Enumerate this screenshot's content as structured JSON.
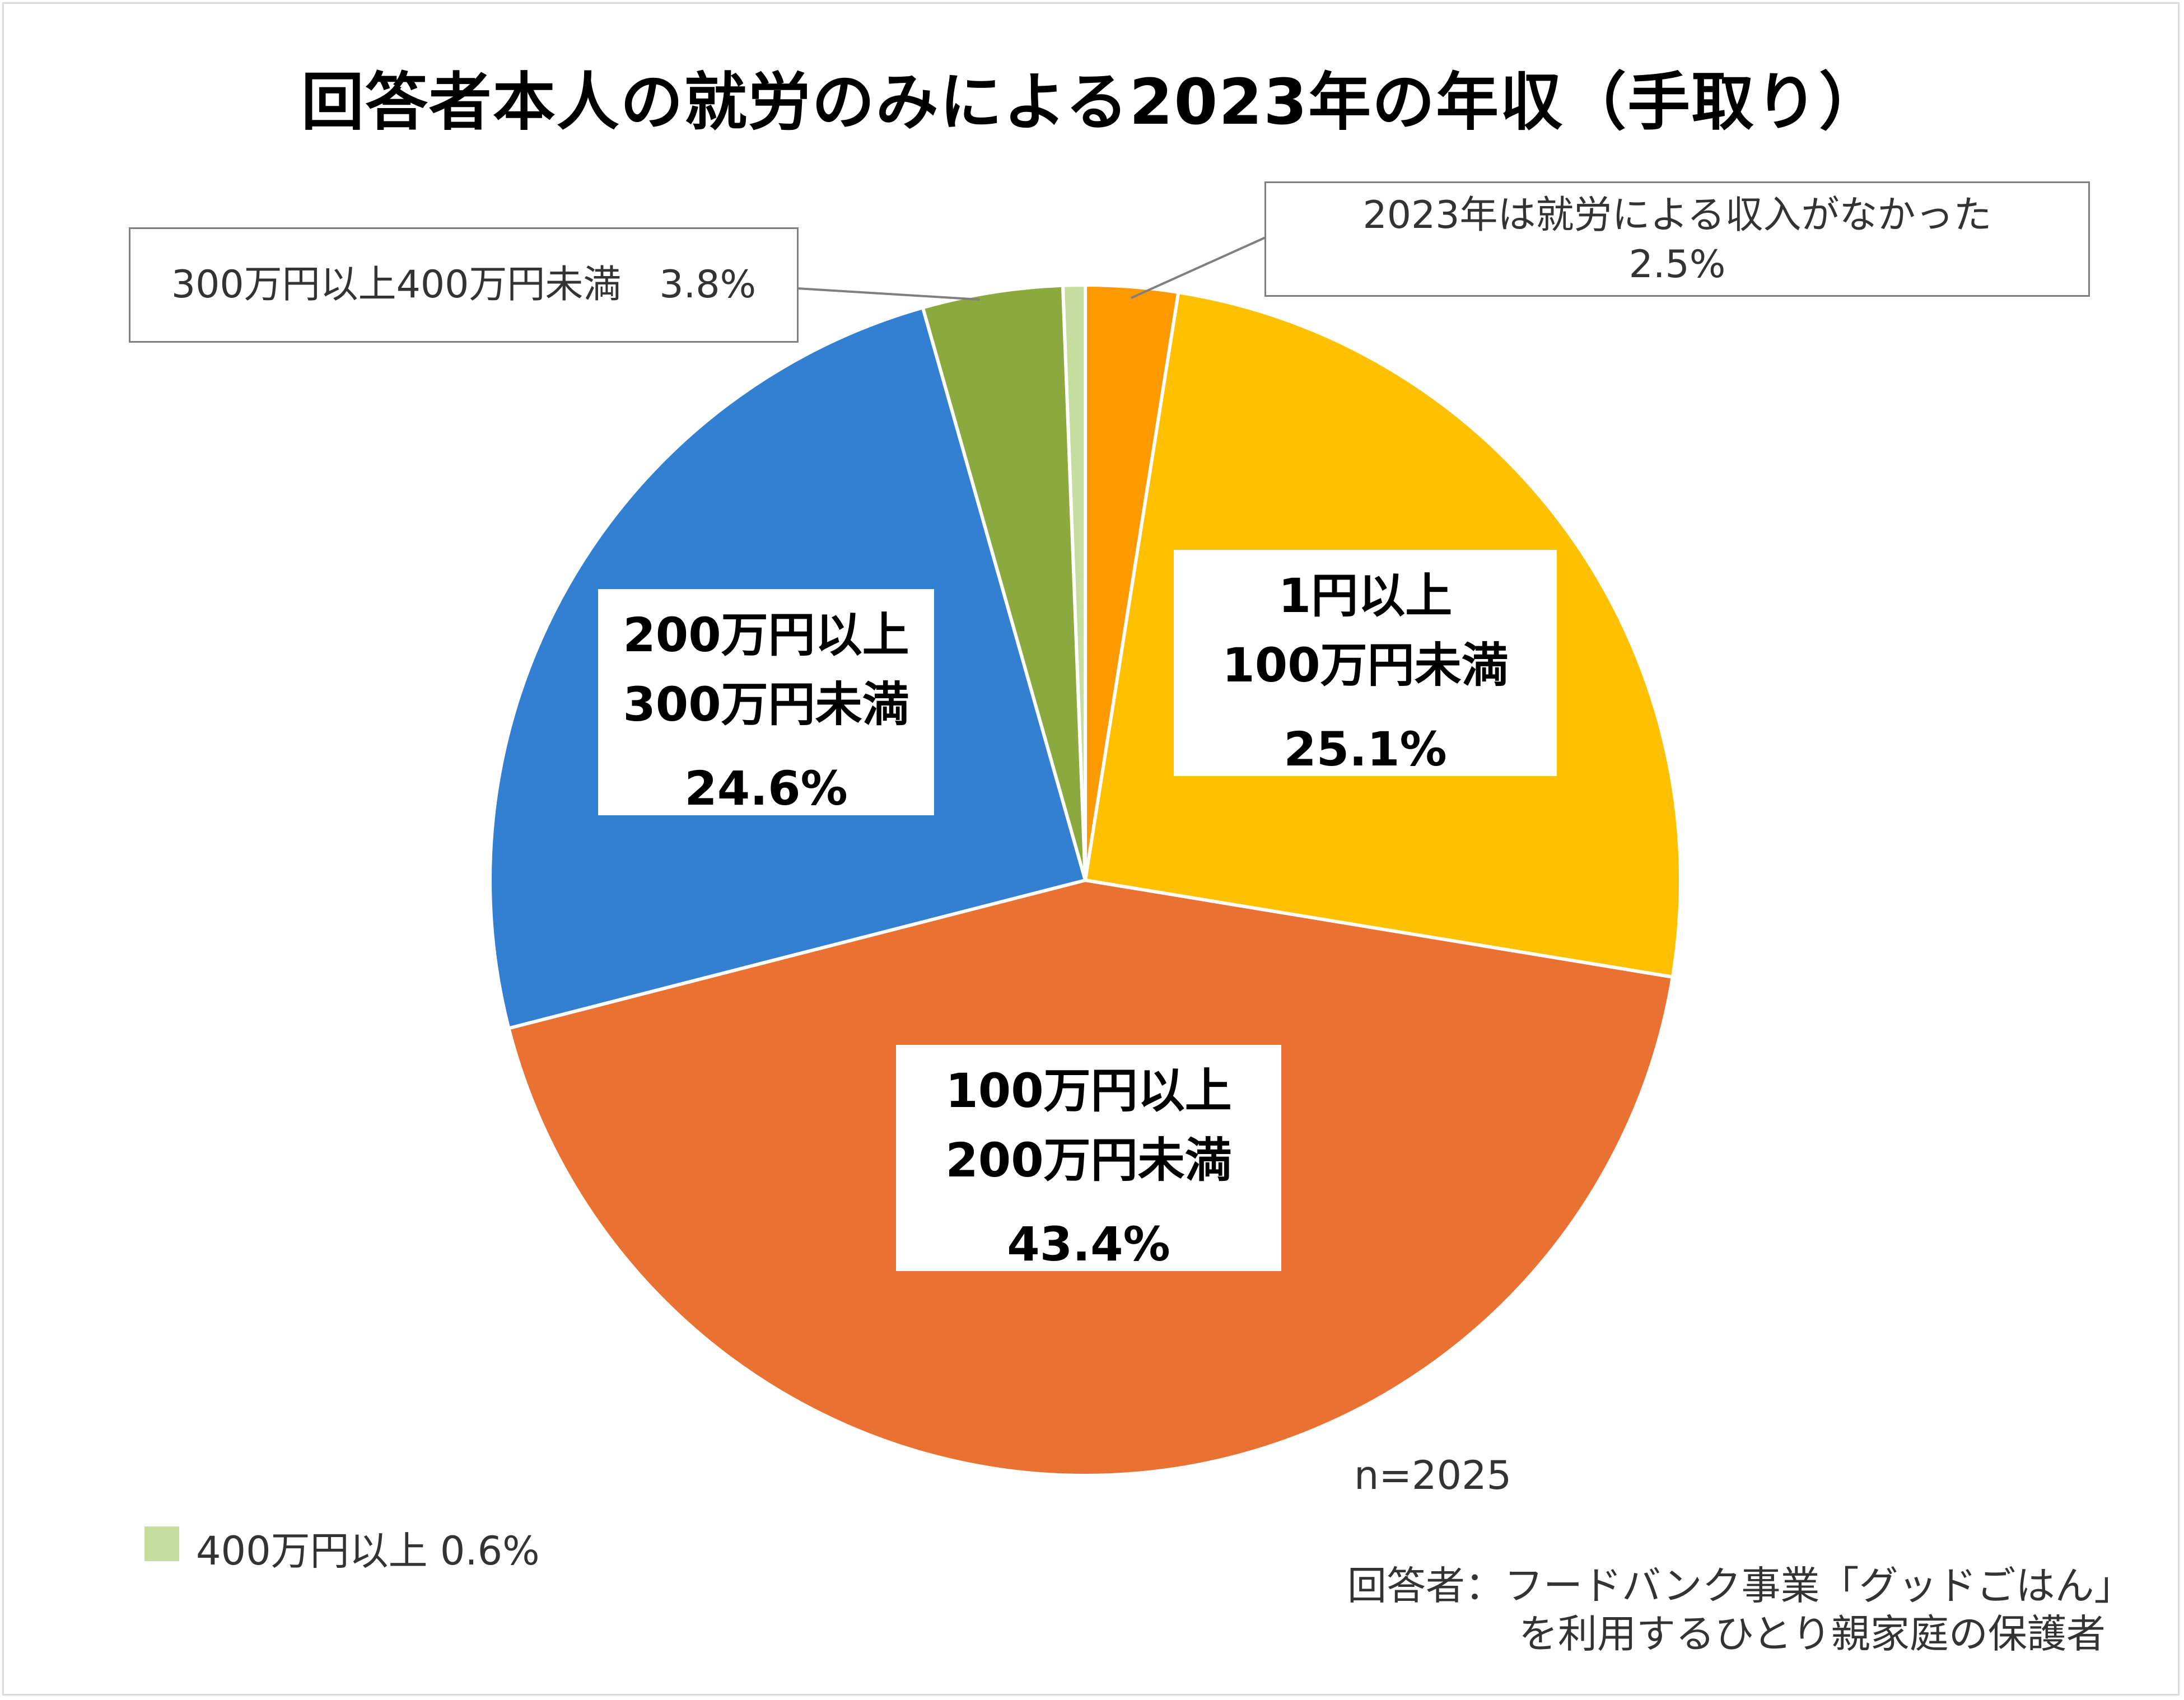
{
  "chart_data": {
    "type": "pie",
    "title": "回答者本人の就労のみによる2023年の年収（手取り）",
    "start_angle_deg": 0,
    "direction": "clockwise",
    "slices": [
      {
        "lines": [
          "2023年は就労による収入がなかった",
          "2.5%"
        ],
        "value": 2.5,
        "color": "#FF9900"
      },
      {
        "lines": [
          "1円以上",
          "100万円未満",
          "25.1%"
        ],
        "value": 25.1,
        "color": "#FFC000"
      },
      {
        "lines": [
          "100万円以上",
          "200万円未満",
          "43.4%"
        ],
        "value": 43.4,
        "color": "#E97132"
      },
      {
        "lines": [
          "200万円以上",
          "300万円未満",
          "24.6%"
        ],
        "value": 24.6,
        "color": "#3380D3"
      },
      {
        "lines": [
          "300万円以上400万円未満　3.8%"
        ],
        "value": 3.8,
        "color": "#8BA93F"
      },
      {
        "lines": [
          "400万円以上  0.6%"
        ],
        "value": 0.6,
        "color": "#C5DE9F"
      }
    ]
  },
  "notes": {
    "sample_size": "n=2025",
    "respondent_line1": "回答者：フードバンク事業「グッドごはん」",
    "respondent_line2": "を利用するひとり親家庭の保護者"
  },
  "colors": {
    "slice_border": "#ffffff",
    "leader_line": "#7f7f7f",
    "label_box_border": "#7f7f7f"
  }
}
